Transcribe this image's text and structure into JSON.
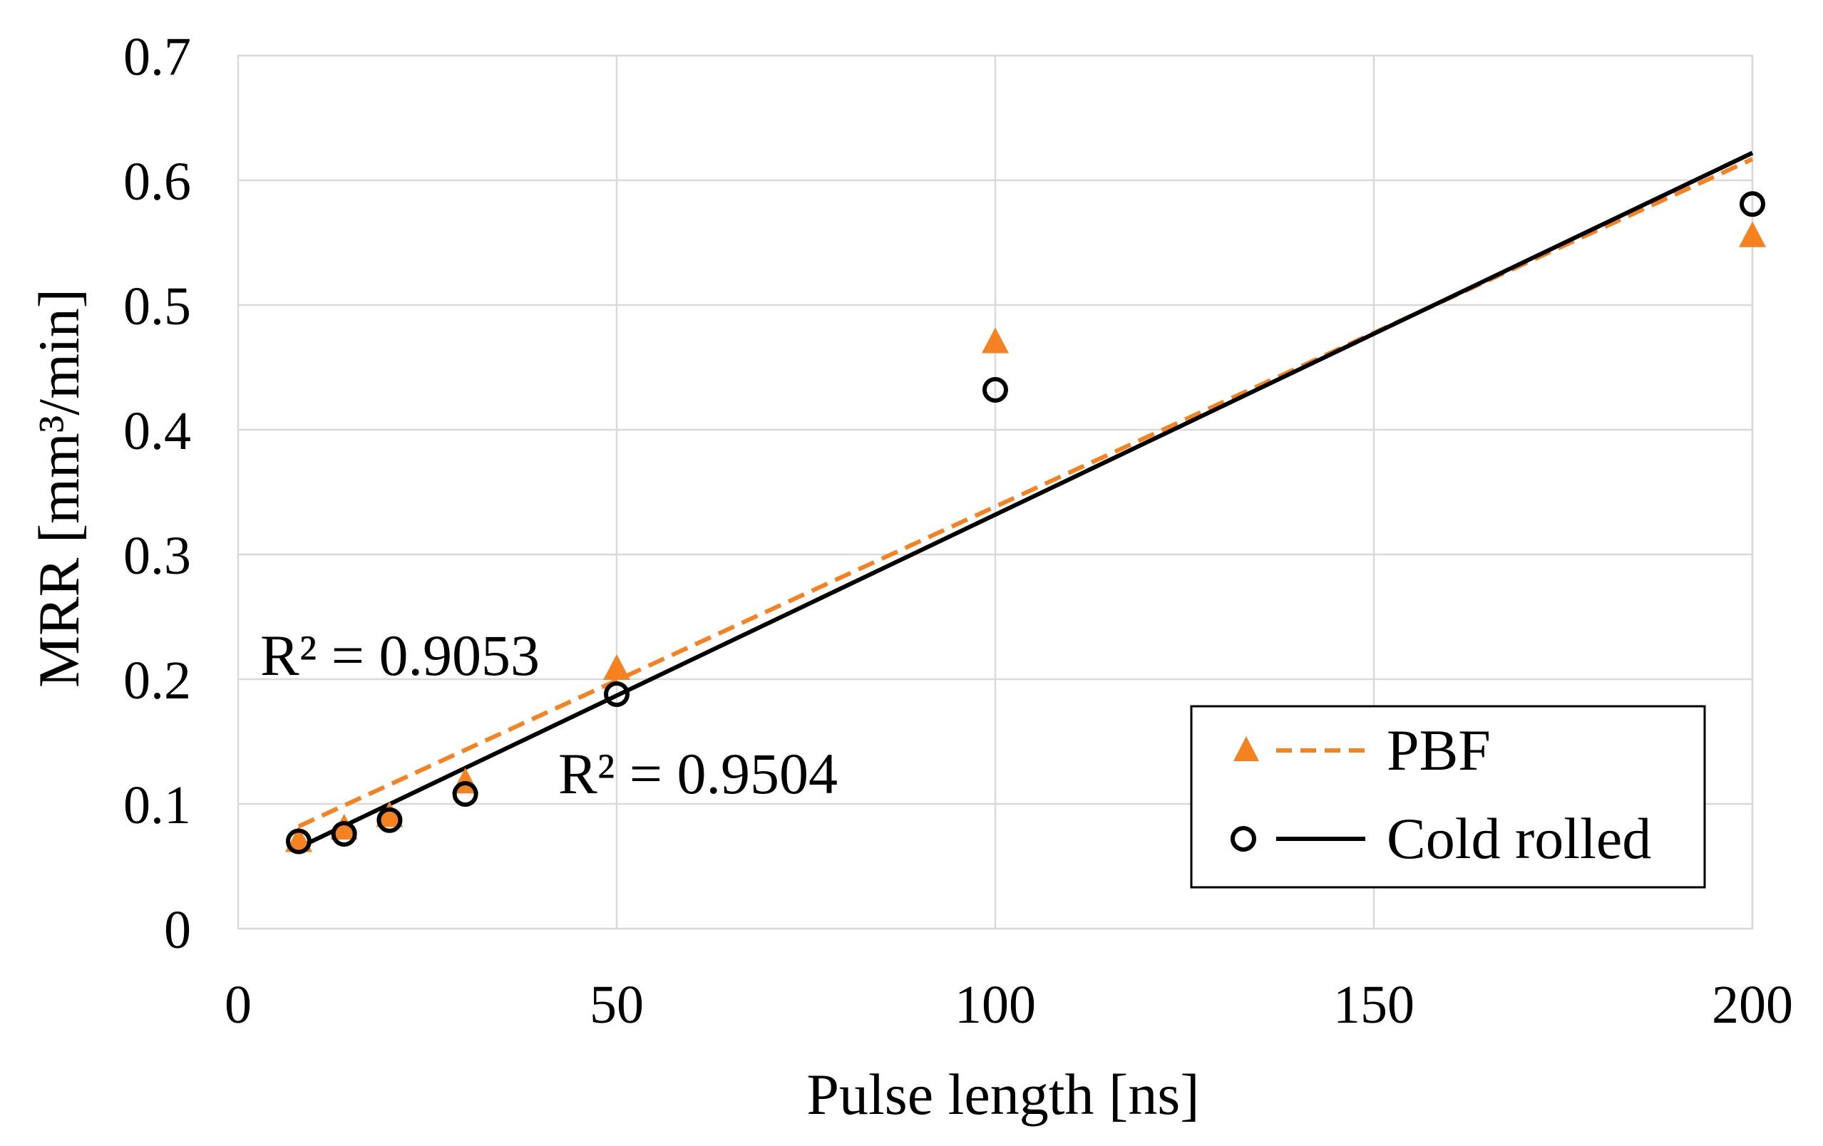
{
  "chart_data": {
    "type": "scatter",
    "title": "",
    "xlabel": "Pulse length [ns]",
    "ylabel": "MRR [mm³/min]",
    "xlim": [
      0,
      200
    ],
    "ylim": [
      0,
      0.7
    ],
    "x_ticks": [
      "0",
      "50",
      "100",
      "150",
      "200"
    ],
    "y_ticks": [
      "0",
      "0.1",
      "0.2",
      "0.3",
      "0.4",
      "0.5",
      "0.6",
      "0.7"
    ],
    "grid": true,
    "legend_position": "bottom-right",
    "series": [
      {
        "name": "PBF",
        "marker": "triangle",
        "color": "#f58220",
        "trendline": "dashed",
        "points": [
          {
            "x": 8,
            "y": 0.07
          },
          {
            "x": 14,
            "y": 0.08
          },
          {
            "x": 20,
            "y": 0.09
          },
          {
            "x": 30,
            "y": 0.117
          },
          {
            "x": 50,
            "y": 0.208
          },
          {
            "x": 100,
            "y": 0.47
          },
          {
            "x": 200,
            "y": 0.555
          }
        ],
        "trend": {
          "x": [
            8,
            200
          ],
          "y": [
            0.082,
            0.617
          ]
        },
        "r2_label": "R² = 0.9053"
      },
      {
        "name": "Cold rolled",
        "marker": "circle",
        "color": "#000000",
        "trendline": "solid",
        "points": [
          {
            "x": 8,
            "y": 0.07
          },
          {
            "x": 14,
            "y": 0.076
          },
          {
            "x": 20,
            "y": 0.087
          },
          {
            "x": 30,
            "y": 0.108
          },
          {
            "x": 50,
            "y": 0.188
          },
          {
            "x": 100,
            "y": 0.432
          },
          {
            "x": 200,
            "y": 0.581
          }
        ],
        "trend": {
          "x": [
            8,
            200
          ],
          "y": [
            0.065,
            0.622
          ]
        },
        "r2_label": "R² = 0.9504"
      }
    ]
  }
}
